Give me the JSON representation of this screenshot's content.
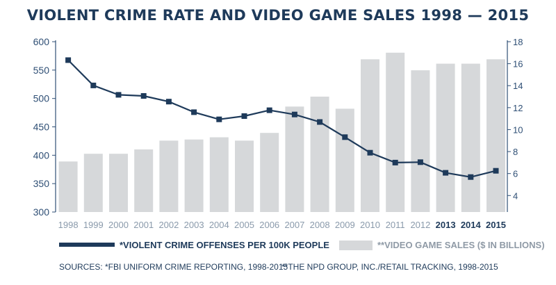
{
  "chart_data": {
    "type": "bar+line",
    "title": "VIOLENT CRIME RATE AND VIDEO GAME SALES 1998 — 2015",
    "categories": [
      "1998",
      "1999",
      "2000",
      "2001",
      "2002",
      "2003",
      "2004",
      "2005",
      "2006",
      "2007",
      "2008",
      "2009",
      "2010",
      "2011",
      "2012",
      "2013",
      "2014",
      "2015"
    ],
    "bold_categories": [
      "2013",
      "2014",
      "2015"
    ],
    "line_series": {
      "name": "*VIOLENT CRIME OFFENSES PER 100K PEOPLE",
      "axis": "left",
      "values": [
        567.6,
        523.0,
        506.5,
        504.5,
        494.4,
        475.8,
        463.2,
        469.0,
        479.3,
        471.8,
        458.6,
        431.9,
        404.5,
        387.1,
        387.8,
        369.1,
        361.6,
        372.6
      ]
    },
    "bar_series": {
      "name": "**VIDEO GAME SALES ($ IN BILLIONS)",
      "axis": "right",
      "values": [
        7.1,
        7.8,
        7.8,
        8.2,
        9.0,
        9.1,
        9.3,
        9.0,
        9.7,
        12.1,
        13.0,
        11.9,
        16.4,
        17.0,
        15.4,
        16.0,
        16.0,
        16.4
      ]
    },
    "left_axis": {
      "min": 300,
      "max": 600,
      "ticks": [
        "600",
        "550",
        "500",
        "450",
        "400",
        "350",
        "300"
      ]
    },
    "right_axis": {
      "min": 2.5,
      "max": 18,
      "ticks": [
        "18",
        "16",
        "14",
        "12",
        "10",
        "8",
        "6",
        "4"
      ]
    },
    "grid": false,
    "legend_position": "bottom",
    "colors": {
      "line": "#1e3a5a",
      "bar": "#d6d8da",
      "axis": "#2f4f75"
    },
    "sources": {
      "left": "SOURCES: *FBI UNIFORM CRIME REPORTING, 1998-2015",
      "right": "**THE NPD GROUP, INC./RETAIL TRACKING, 1998-2015"
    }
  }
}
